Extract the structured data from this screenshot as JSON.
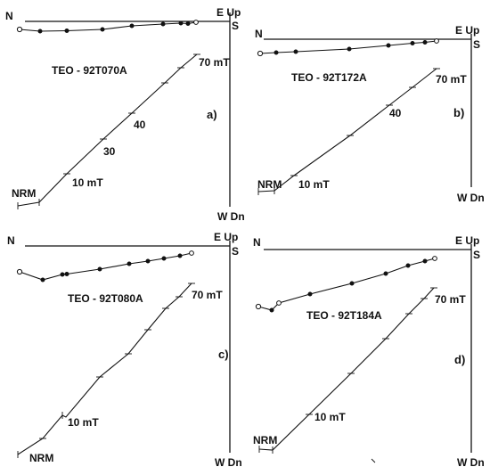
{
  "figure": {
    "panels": [
      {
        "letter": "a)",
        "specimen": "TEO - 92T070A",
        "axis_labels": {
          "north": "N",
          "east_up": "E Up",
          "south": "S",
          "west_down": "W Dn"
        },
        "step_labels": [
          "NRM",
          "10 mT",
          "30",
          "40",
          "70 mT"
        ]
      },
      {
        "letter": "b)",
        "specimen": "TEO - 92T172A",
        "axis_labels": {
          "north": "N",
          "east_up": "E Up",
          "south": "S",
          "west_down": "W Dn"
        },
        "step_labels": [
          "NRM",
          "10 mT",
          "40",
          "70 mT"
        ]
      },
      {
        "letter": "c)",
        "specimen": "TEO - 92T080A",
        "axis_labels": {
          "north": "N",
          "east_up": "E Up",
          "south": "S",
          "west_down": "W Dn"
        },
        "step_labels": [
          "NRM",
          "10 mT",
          "70 mT"
        ]
      },
      {
        "letter": "d)",
        "specimen": "TEO - 92T184A",
        "axis_labels": {
          "north": "N",
          "east_up": "E Up",
          "south": "S",
          "west_down": "W Dn"
        },
        "step_labels": [
          "NRM",
          "10 mT",
          "70 mT"
        ]
      }
    ]
  }
}
